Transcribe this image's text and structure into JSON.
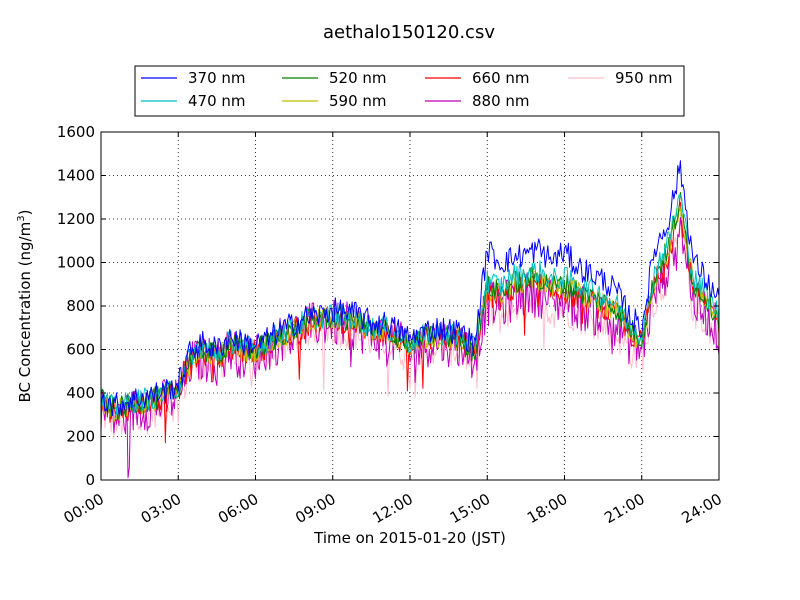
{
  "chart_data": {
    "type": "line",
    "title": "aethalo150120.csv",
    "xlabel": "Time on 2015-01-20 (JST)",
    "ylabel_main": "BC Concentration (ng/m",
    "ylabel_sup": "3",
    "ylabel_end": ")",
    "xlim": [
      0,
      24
    ],
    "ylim": [
      0,
      1600
    ],
    "x_unit": "hour",
    "x_ticks": [
      0,
      3,
      6,
      9,
      12,
      15,
      18,
      21,
      24
    ],
    "x_tick_labels": [
      "00:00",
      "03:00",
      "06:00",
      "09:00",
      "12:00",
      "15:00",
      "18:00",
      "21:00",
      "24:00"
    ],
    "y_ticks": [
      0,
      200,
      400,
      600,
      800,
      1000,
      1200,
      1400,
      1600
    ],
    "y_tick_labels": [
      "0",
      "200",
      "400",
      "600",
      "800",
      "1000",
      "1200",
      "1400",
      "1600"
    ],
    "grid": true,
    "legend_position": "top-center",
    "legend_columns": 4,
    "x": [
      0,
      0.5,
      1,
      1.5,
      2,
      2.5,
      3,
      3.5,
      4,
      4.5,
      5,
      5.5,
      6,
      6.5,
      7,
      7.5,
      8,
      8.5,
      9,
      9.5,
      10,
      10.5,
      11,
      11.5,
      12,
      12.5,
      13,
      13.5,
      14,
      14.5,
      15,
      15.5,
      16,
      16.5,
      17,
      17.5,
      18,
      18.5,
      19,
      19.5,
      20,
      20.5,
      21,
      21.5,
      22,
      22.5,
      23,
      23.5,
      24
    ],
    "series": [
      {
        "name": "370 nm",
        "color": "#0000ff",
        "values": [
          390,
          340,
          360,
          380,
          390,
          410,
          440,
          600,
          630,
          600,
          660,
          630,
          620,
          650,
          690,
          720,
          750,
          760,
          780,
          770,
          760,
          720,
          720,
          690,
          650,
          680,
          700,
          690,
          680,
          620,
          1060,
          1000,
          1020,
          1040,
          1060,
          1010,
          1050,
          980,
          950,
          920,
          870,
          760,
          700,
          1060,
          1180,
          1440,
          1010,
          920,
          820
        ]
      },
      {
        "name": "470 nm",
        "color": "#00bfbf",
        "values": [
          380,
          330,
          350,
          370,
          380,
          400,
          430,
          580,
          610,
          580,
          640,
          610,
          610,
          640,
          680,
          700,
          740,
          750,
          760,
          750,
          740,
          700,
          700,
          670,
          630,
          660,
          680,
          670,
          660,
          600,
          920,
          890,
          940,
          950,
          960,
          920,
          930,
          900,
          880,
          850,
          810,
          720,
          670,
          960,
          1090,
          1310,
          930,
          860,
          760
        ]
      },
      {
        "name": "520 nm",
        "color": "#008000",
        "values": [
          370,
          320,
          340,
          360,
          370,
          390,
          420,
          570,
          600,
          570,
          630,
          600,
          600,
          630,
          670,
          690,
          730,
          740,
          750,
          740,
          730,
          690,
          690,
          660,
          620,
          650,
          670,
          660,
          650,
          590,
          890,
          860,
          910,
          920,
          930,
          890,
          900,
          870,
          850,
          820,
          790,
          700,
          650,
          930,
          1060,
          1280,
          900,
          840,
          740
        ]
      },
      {
        "name": "590 nm",
        "color": "#bfbf00",
        "values": [
          365,
          315,
          335,
          355,
          365,
          385,
          415,
          565,
          590,
          565,
          620,
          595,
          595,
          625,
          665,
          685,
          720,
          735,
          745,
          735,
          725,
          685,
          685,
          655,
          615,
          645,
          665,
          655,
          645,
          585,
          880,
          850,
          900,
          910,
          920,
          880,
          890,
          860,
          840,
          810,
          780,
          690,
          640,
          920,
          1050,
          1270,
          890,
          830,
          730
        ]
      },
      {
        "name": "660 nm",
        "color": "#ff0000",
        "values": [
          360,
          310,
          330,
          350,
          360,
          380,
          410,
          560,
          580,
          560,
          610,
          590,
          590,
          620,
          660,
          680,
          710,
          730,
          740,
          730,
          720,
          680,
          680,
          650,
          610,
          640,
          660,
          650,
          640,
          580,
          860,
          830,
          880,
          890,
          900,
          860,
          870,
          840,
          820,
          790,
          760,
          680,
          630,
          900,
          1030,
          1250,
          870,
          810,
          720
        ]
      },
      {
        "name": "880 nm",
        "color": "#bf00bf",
        "values": [
          330,
          280,
          300,
          330,
          340,
          360,
          380,
          540,
          560,
          540,
          600,
          570,
          570,
          610,
          650,
          670,
          700,
          720,
          720,
          710,
          700,
          660,
          660,
          630,
          590,
          620,
          640,
          630,
          620,
          560,
          820,
          790,
          840,
          850,
          860,
          820,
          830,
          800,
          780,
          750,
          720,
          640,
          600,
          860,
          980,
          1200,
          820,
          770,
          680
        ]
      },
      {
        "name": "950 nm",
        "color": "#ffc0cb",
        "values": [
          310,
          260,
          280,
          310,
          320,
          340,
          360,
          520,
          540,
          520,
          580,
          550,
          550,
          590,
          630,
          650,
          680,
          700,
          700,
          690,
          680,
          640,
          640,
          610,
          570,
          600,
          620,
          610,
          600,
          540,
          780,
          750,
          800,
          810,
          820,
          780,
          790,
          760,
          740,
          710,
          680,
          600,
          560,
          820,
          940,
          1150,
          780,
          730,
          640
        ]
      }
    ]
  }
}
